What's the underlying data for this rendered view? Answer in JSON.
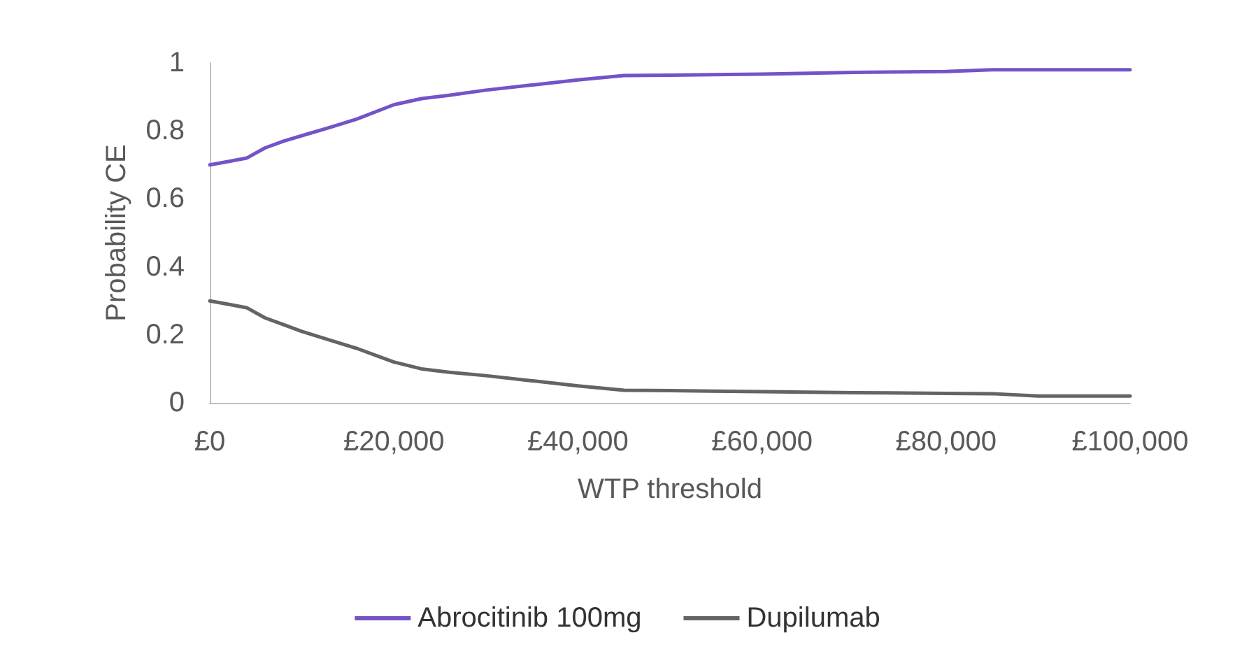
{
  "chart_data": {
    "type": "line",
    "xlabel": "WTP threshold",
    "ylabel": "Probability CE",
    "xlim": [
      0,
      100000
    ],
    "xticks": [
      {
        "value": 0,
        "label": "£0"
      },
      {
        "value": 20000,
        "label": "£20,000"
      },
      {
        "value": 40000,
        "label": "£40,000"
      },
      {
        "value": 60000,
        "label": "£60,000"
      },
      {
        "value": 80000,
        "label": "£80,000"
      },
      {
        "value": 100000,
        "label": "£100,000"
      }
    ],
    "ylim": [
      0,
      1
    ],
    "yticks": [
      0,
      0.2,
      0.4,
      0.6,
      0.8,
      1
    ],
    "grid": false,
    "legend": "bottom",
    "marker": "none",
    "line_style": "solid",
    "x": [
      0,
      2000,
      4000,
      6000,
      8000,
      10000,
      13000,
      16000,
      20000,
      23000,
      26000,
      30000,
      35000,
      40000,
      45000,
      50000,
      60000,
      70000,
      80000,
      85000,
      90000,
      100000
    ],
    "series": [
      {
        "name": "Abrocitinib 100mg",
        "color": "#7453c8",
        "values": [
          0.7,
          0.71,
          0.72,
          0.75,
          0.77,
          0.786,
          0.81,
          0.835,
          0.877,
          0.895,
          0.905,
          0.92,
          0.935,
          0.95,
          0.963,
          0.964,
          0.967,
          0.972,
          0.975,
          0.98,
          0.98,
          0.98
        ]
      },
      {
        "name": "Dupilumab",
        "color": "#646464",
        "values": [
          0.3,
          0.29,
          0.28,
          0.25,
          0.23,
          0.21,
          0.185,
          0.16,
          0.12,
          0.1,
          0.09,
          0.08,
          0.065,
          0.05,
          0.037,
          0.036,
          0.033,
          0.03,
          0.028,
          0.027,
          0.02,
          0.02
        ]
      }
    ]
  }
}
